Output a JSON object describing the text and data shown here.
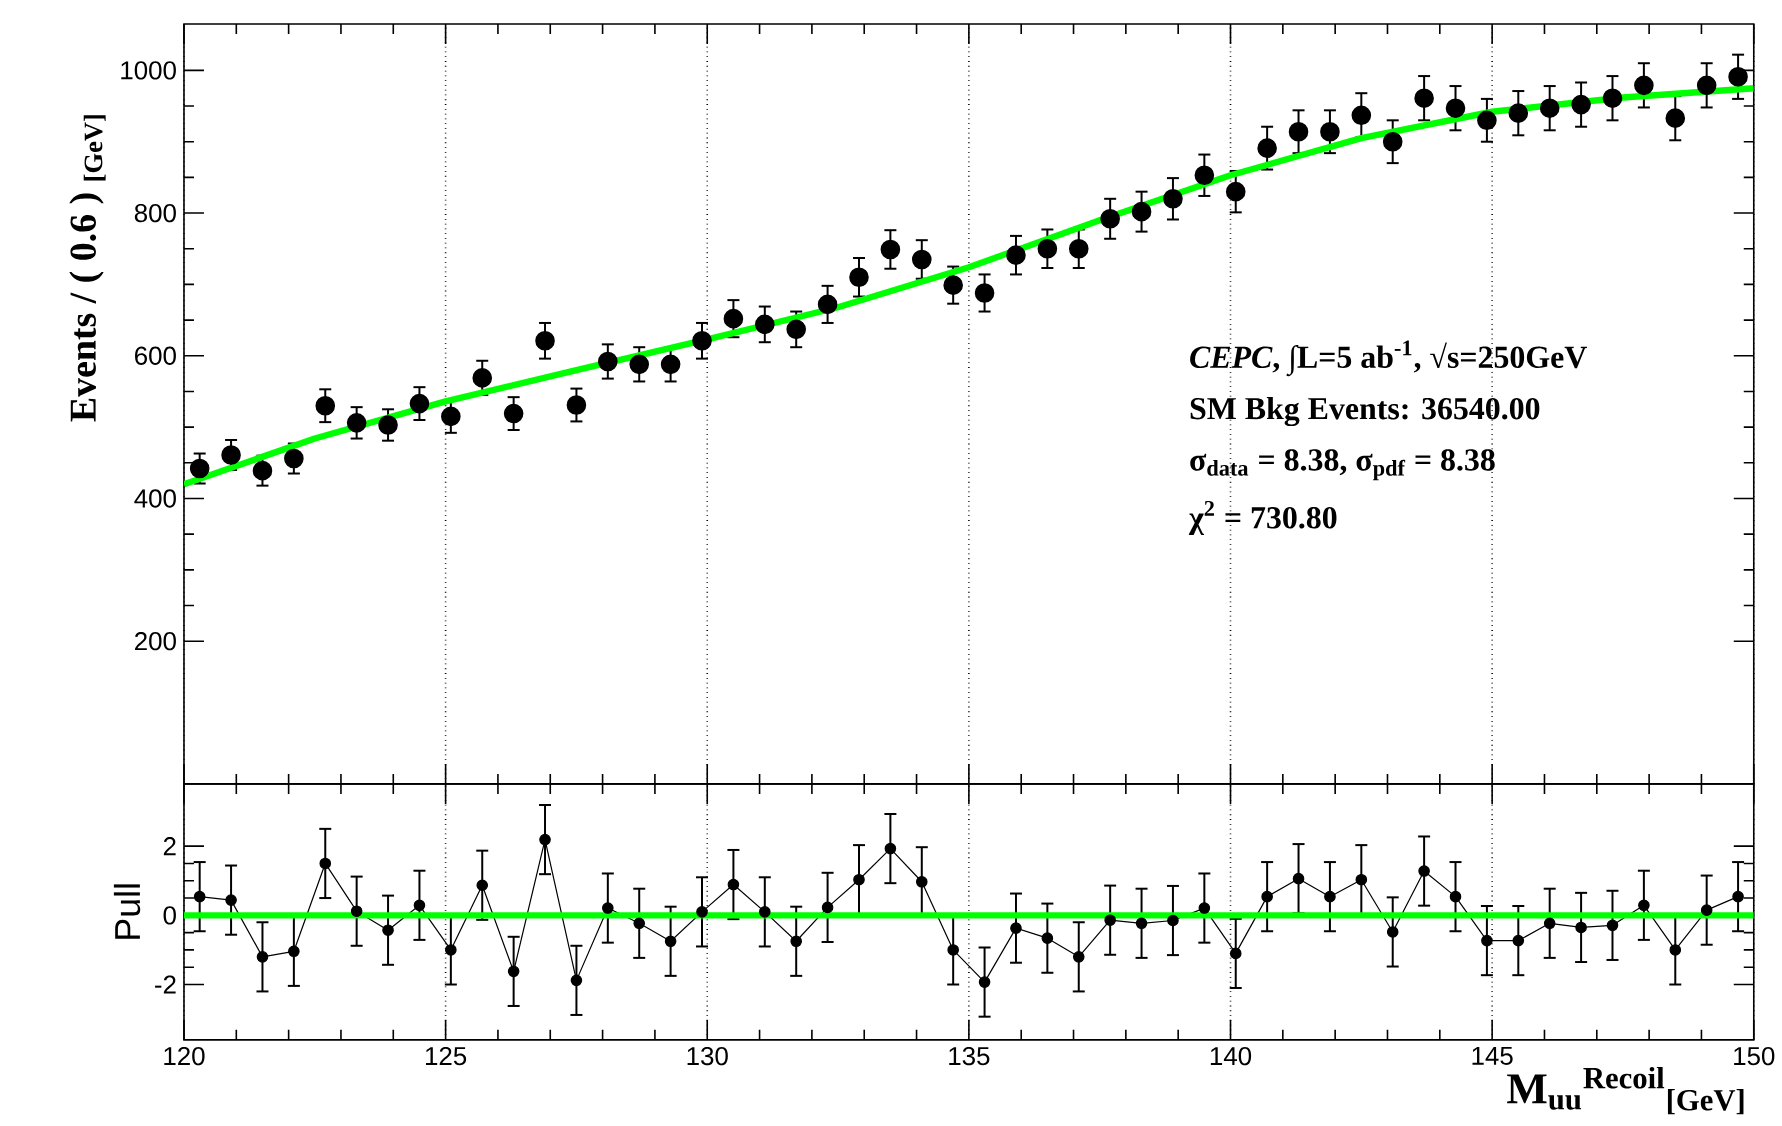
{
  "chart_data": [
    {
      "type": "scatter",
      "ylabel": "Events / ( 0.6 ) $_{[GeV]}$",
      "xlim": [
        120,
        150
      ],
      "ylim": [
        0,
        1065
      ],
      "xticks": [
        120,
        125,
        130,
        135,
        140,
        145,
        150
      ],
      "yticks": [
        200,
        400,
        600,
        800,
        1000
      ],
      "tick_labels": "y",
      "grid": "x",
      "x": [
        120.3,
        120.9,
        121.5,
        122.1,
        122.7,
        123.3,
        123.9,
        124.5,
        125.1,
        125.7,
        126.3,
        126.9,
        127.5,
        128.1,
        128.7,
        129.3,
        129.9,
        130.5,
        131.1,
        131.7,
        132.3,
        132.9,
        133.5,
        134.1,
        134.7,
        135.3,
        135.9,
        136.5,
        137.1,
        137.7,
        138.3,
        138.9,
        139.5,
        140.1,
        140.7,
        141.3,
        141.9,
        142.5,
        143.1,
        143.7,
        144.3,
        144.9,
        145.5,
        146.1,
        146.7,
        147.3,
        147.9,
        148.5,
        149.1,
        149.7
      ],
      "series": [
        {
          "color": "#000000",
          "marker": "circle",
          "values": [
            442,
            461,
            439,
            456,
            530,
            506,
            503,
            533,
            515,
            569,
            519,
            621,
            531,
            592,
            588,
            588,
            621,
            652,
            644,
            637,
            672,
            710,
            749,
            735,
            699,
            688,
            741,
            750,
            750,
            792,
            802,
            820,
            853,
            830,
            891,
            914,
            914,
            937,
            900,
            961,
            947,
            930,
            940,
            947,
            952,
            961,
            979,
            933,
            979,
            991
          ],
          "errors": [
            21,
            21,
            21,
            21,
            23,
            22,
            22,
            23,
            23,
            24,
            23,
            25,
            23,
            24,
            24,
            24,
            25,
            26,
            25,
            25,
            26,
            27,
            27,
            27,
            26,
            26,
            27,
            27,
            27,
            28,
            28,
            29,
            29,
            29,
            30,
            30,
            30,
            31,
            30,
            31,
            31,
            30,
            31,
            31,
            31,
            31,
            31,
            31,
            31,
            31
          ]
        },
        {
          "type": "line",
          "color": "#00ff00",
          "x": [
            120,
            122.5,
            125,
            127.5,
            130,
            132.5,
            135,
            137.5,
            140,
            142.5,
            145,
            147.5,
            150
          ],
          "values": [
            420,
            484,
            536,
            580,
            623,
            668,
            724,
            790,
            853,
            905,
            942,
            962,
            975
          ]
        }
      ],
      "annotations": [
        "*CEPC*,  ∫L=5 ab$^{-1}$,  √s=250GeV",
        "SM Bkg Events: 36540.00",
        "σ$_{data}$ =  8.38,  σ$_{pdf}$ =  8.38",
        "χ$^{2}$ = 730.80"
      ]
    },
    {
      "type": "line",
      "xlabel": "M$_{uu}$$^{Recoil}$$_{[GeV]}$",
      "ylabel": "Pull",
      "xlim": [
        120,
        150
      ],
      "ylim": [
        -3.6,
        3.8
      ],
      "xticks": [
        120,
        125,
        130,
        135,
        140,
        145,
        150
      ],
      "yticks": [
        -2,
        0,
        2
      ],
      "grid": "x",
      "x": [
        120.3,
        120.9,
        121.5,
        122.1,
        122.7,
        123.3,
        123.9,
        124.5,
        125.1,
        125.7,
        126.3,
        126.9,
        127.5,
        128.1,
        128.7,
        129.3,
        129.9,
        130.5,
        131.1,
        131.7,
        132.3,
        132.9,
        133.5,
        134.1,
        134.7,
        135.3,
        135.9,
        136.5,
        137.1,
        137.7,
        138.3,
        138.9,
        139.5,
        140.1,
        140.7,
        141.3,
        141.9,
        142.5,
        143.1,
        143.7,
        144.3,
        144.9,
        145.5,
        146.1,
        146.7,
        147.3,
        147.9,
        148.5,
        149.1,
        149.7
      ],
      "series": [
        {
          "color": "#000000",
          "marker": "circle",
          "values": [
            0.54,
            0.44,
            -1.2,
            -1.04,
            1.5,
            0.12,
            -0.43,
            0.29,
            -1.0,
            0.87,
            -1.62,
            2.19,
            -1.88,
            0.21,
            -0.23,
            -0.75,
            0.1,
            0.89,
            0.1,
            -0.75,
            0.23,
            1.03,
            1.93,
            0.97,
            -1.0,
            -1.93,
            -0.37,
            -0.66,
            -1.2,
            -0.14,
            -0.23,
            -0.15,
            0.21,
            -1.1,
            0.54,
            1.06,
            0.54,
            1.03,
            -0.48,
            1.28,
            0.54,
            -0.73,
            -0.73,
            -0.23,
            -0.35,
            -0.29,
            0.29,
            -1.0,
            0.15,
            0.54
          ],
          "errors": [
            1,
            1,
            1,
            1,
            1,
            1,
            1,
            1,
            1,
            1,
            1,
            1,
            1,
            1,
            1,
            1,
            1,
            1,
            1,
            1,
            1,
            1,
            1,
            1,
            1,
            1,
            1,
            1,
            1,
            1,
            1,
            1,
            1,
            1,
            1,
            1,
            1,
            1,
            1,
            1,
            1,
            1,
            1,
            1,
            1,
            1,
            1,
            1,
            1,
            1
          ]
        }
      ],
      "ref_lines": [
        {
          "axis": "y",
          "value": 0,
          "color": "#00ff00"
        }
      ]
    }
  ]
}
